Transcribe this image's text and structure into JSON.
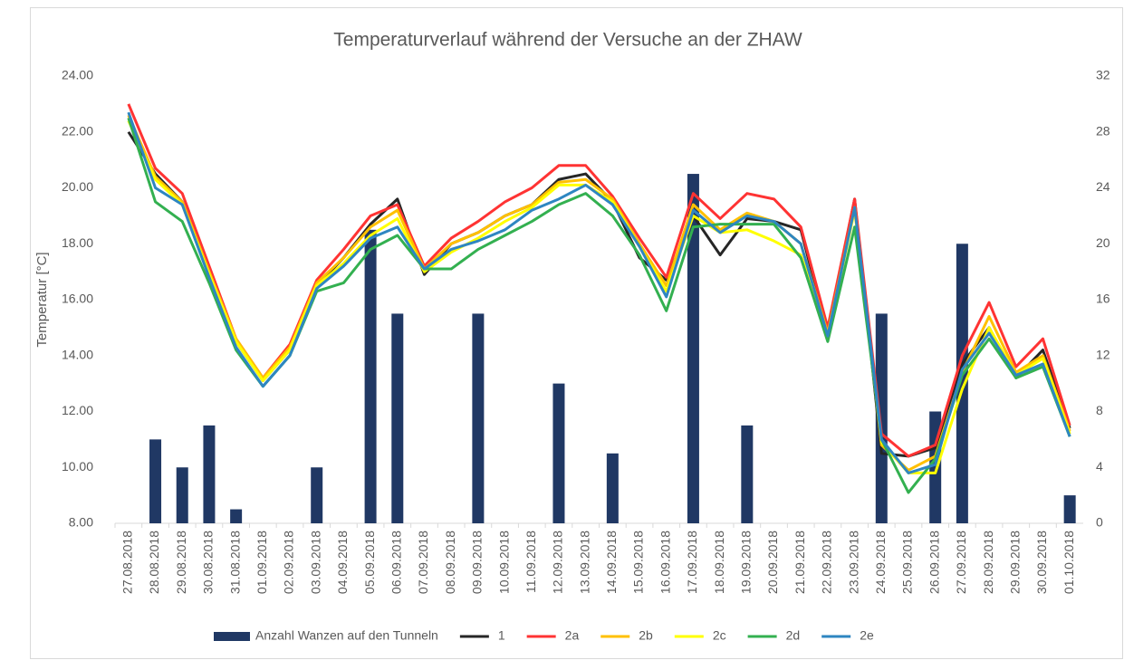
{
  "chart_data": {
    "type": "combo",
    "title": "Temperaturverlauf während der Versuche an der ZHAW",
    "y_label": "Temperatur [°C]",
    "categories": [
      "27.08.2018",
      "28.08.2018",
      "29.08.2018",
      "30.08.2018",
      "31.08.2018",
      "01.09.2018",
      "02.09.2018",
      "03.09.2018",
      "04.09.2018",
      "05.09.2018",
      "06.09.2018",
      "07.09.2018",
      "08.09.2018",
      "09.09.2018",
      "10.09.2018",
      "11.09.2018",
      "12.09.2018",
      "13.09.2018",
      "14.09.2018",
      "15.09.2018",
      "16.09.2018",
      "17.09.2018",
      "18.09.2018",
      "19.09.2018",
      "20.09.2018",
      "21.09.2018",
      "22.09.2018",
      "23.09.2018",
      "24.09.2018",
      "25.09.2018",
      "26.09.2018",
      "27.09.2018",
      "28.09.2018",
      "29.09.2018",
      "30.09.2018",
      "01.10.2018"
    ],
    "series": [
      {
        "name": "Anzahl Wanzen auf den Tunneln",
        "type": "bar",
        "axis": "y2",
        "color": "#203864",
        "values": [
          0,
          6,
          4,
          7,
          1,
          0,
          0,
          4,
          0,
          21,
          15,
          0,
          0,
          15,
          0,
          0,
          10,
          0,
          5,
          0,
          0,
          25,
          0,
          7,
          0,
          0,
          0,
          0,
          15,
          0,
          8,
          20,
          0,
          0,
          0,
          2
        ]
      },
      {
        "name": "1",
        "type": "line",
        "color": "#262626",
        "values": [
          22.0,
          20.5,
          19.5,
          17.0,
          14.5,
          13.1,
          14.2,
          16.5,
          17.5,
          18.7,
          19.6,
          16.9,
          18.0,
          18.4,
          19.0,
          19.4,
          20.3,
          20.5,
          19.5,
          17.5,
          16.7,
          19.0,
          17.6,
          18.9,
          18.8,
          18.5,
          14.8,
          19.6,
          10.5,
          10.4,
          10.7,
          13.7,
          15.0,
          13.2,
          14.2,
          11.4
        ]
      },
      {
        "name": "2a",
        "type": "line",
        "color": "#ff3333",
        "values": [
          23.0,
          20.7,
          19.8,
          17.2,
          14.6,
          13.2,
          14.4,
          16.7,
          17.8,
          19.0,
          19.4,
          17.2,
          18.2,
          18.8,
          19.5,
          20.0,
          20.8,
          20.8,
          19.7,
          18.2,
          16.8,
          19.8,
          18.9,
          19.8,
          19.6,
          18.6,
          15.0,
          19.6,
          11.2,
          10.4,
          10.8,
          14.0,
          15.9,
          13.6,
          14.6,
          11.5
        ]
      },
      {
        "name": "2b",
        "type": "line",
        "color": "#ffc000",
        "values": [
          22.6,
          20.4,
          19.5,
          17.0,
          14.6,
          13.2,
          14.3,
          16.6,
          17.5,
          18.6,
          19.2,
          17.1,
          18.0,
          18.4,
          19.0,
          19.4,
          20.2,
          20.3,
          19.6,
          18.0,
          16.5,
          19.4,
          18.5,
          19.1,
          18.8,
          18.0,
          14.8,
          19.3,
          10.8,
          9.9,
          10.4,
          13.4,
          15.4,
          13.4,
          14.0,
          11.3
        ]
      },
      {
        "name": "2c",
        "type": "line",
        "color": "#ffff00",
        "values": [
          22.4,
          20.3,
          19.4,
          16.9,
          14.5,
          13.1,
          14.2,
          16.5,
          17.3,
          18.3,
          18.9,
          17.0,
          17.7,
          18.2,
          18.8,
          19.3,
          20.1,
          20.1,
          19.5,
          17.9,
          16.3,
          19.0,
          18.4,
          18.5,
          18.1,
          17.6,
          14.7,
          19.2,
          10.9,
          9.8,
          9.8,
          12.8,
          15.0,
          13.3,
          13.9,
          11.2
        ]
      },
      {
        "name": "2d",
        "type": "line",
        "color": "#33b050",
        "values": [
          22.5,
          19.5,
          18.8,
          16.6,
          14.2,
          12.9,
          14.0,
          16.3,
          16.6,
          17.8,
          18.3,
          17.1,
          17.1,
          17.8,
          18.3,
          18.8,
          19.4,
          19.8,
          19.0,
          17.6,
          15.6,
          18.6,
          18.7,
          18.7,
          18.7,
          17.5,
          14.5,
          18.6,
          11.0,
          9.1,
          10.3,
          13.3,
          14.6,
          13.2,
          13.6,
          11.1
        ]
      },
      {
        "name": "2e",
        "type": "line",
        "color": "#2e86c1",
        "values": [
          22.7,
          20.0,
          19.4,
          16.8,
          14.3,
          12.9,
          14.0,
          16.4,
          17.2,
          18.2,
          18.6,
          17.1,
          17.8,
          18.1,
          18.5,
          19.2,
          19.6,
          20.1,
          19.4,
          17.9,
          16.1,
          19.2,
          18.4,
          19.0,
          18.8,
          18.0,
          14.7,
          19.3,
          11.0,
          9.8,
          10.1,
          13.5,
          14.8,
          13.3,
          13.7,
          11.1
        ]
      }
    ],
    "ylim": [
      8,
      24
    ],
    "yticks": [
      {
        "value": 8,
        "label": "8.00"
      },
      {
        "value": 10,
        "label": "10.00"
      },
      {
        "value": 12,
        "label": "12.00"
      },
      {
        "value": 14,
        "label": "14.00"
      },
      {
        "value": 16,
        "label": "16.00"
      },
      {
        "value": 18,
        "label": "18.00"
      },
      {
        "value": 20,
        "label": "20.00"
      },
      {
        "value": 22,
        "label": "22.00"
      },
      {
        "value": 24,
        "label": "24.00"
      }
    ],
    "y2lim": [
      0,
      32
    ],
    "y2ticks": [
      0,
      4,
      8,
      12,
      16,
      20,
      24,
      28,
      32
    ],
    "grid": false,
    "legend": "bottom"
  }
}
